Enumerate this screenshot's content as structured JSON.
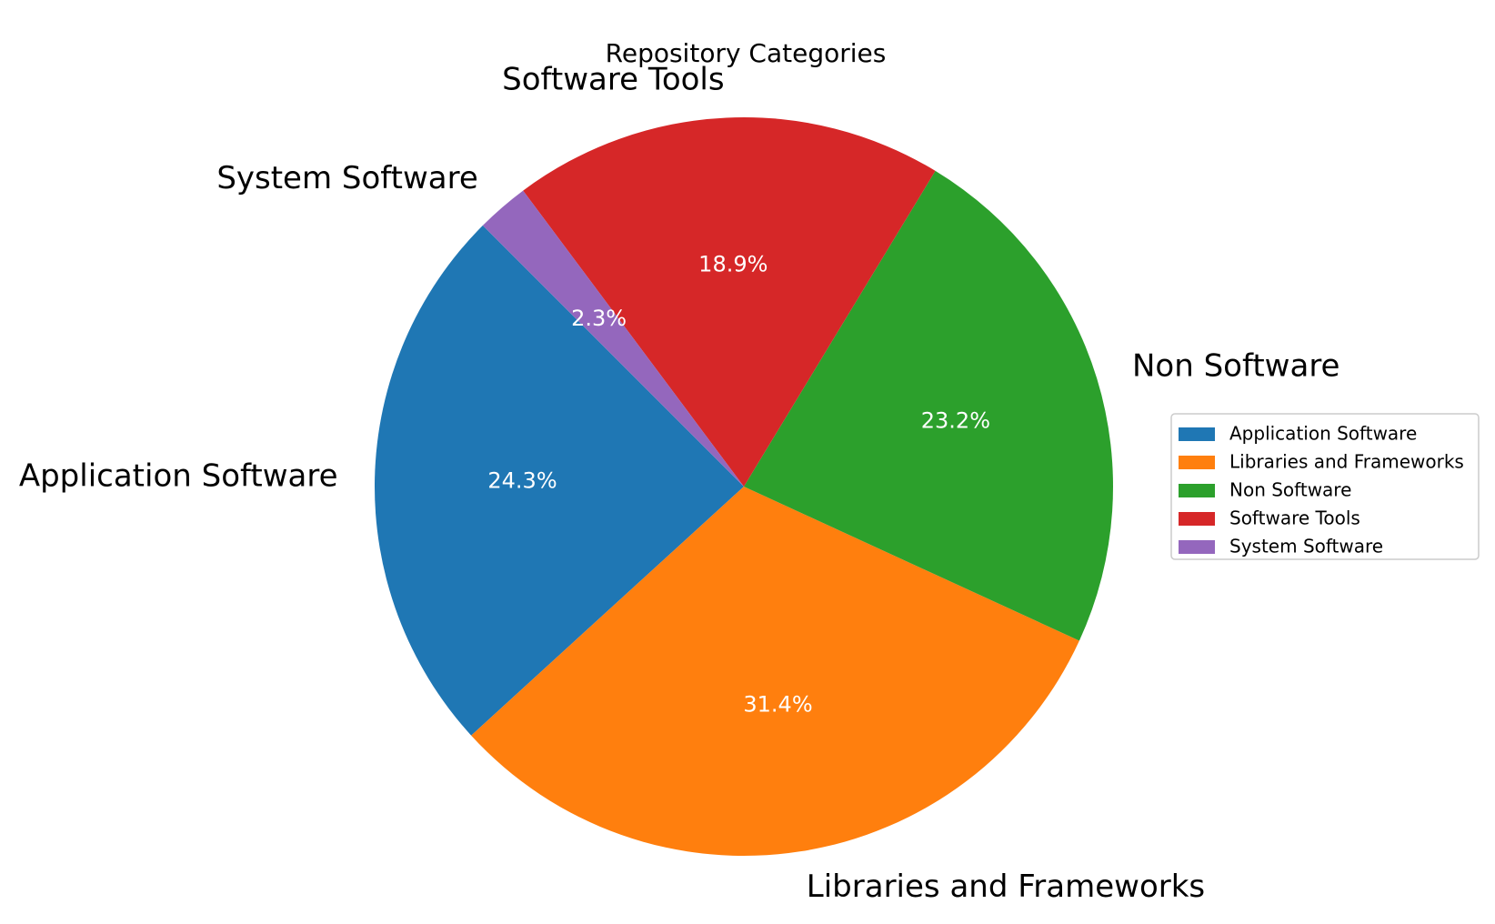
{
  "chart_data": {
    "type": "pie",
    "title": "Repository Categories",
    "categories": [
      "Application Software",
      "Libraries and Frameworks",
      "Non Software",
      "Software Tools",
      "System Software"
    ],
    "values": [
      24.3,
      31.4,
      23.2,
      18.9,
      2.3
    ],
    "percent_labels": [
      "24.3%",
      "31.4%",
      "23.2%",
      "18.9%",
      "2.3%"
    ],
    "colors": [
      "#1f77b4",
      "#ff7f0e",
      "#2ca02c",
      "#d62728",
      "#9467bd"
    ],
    "start_angle_deg": 135,
    "direction": "counterclockwise",
    "legend": {
      "placement": "right",
      "entries": [
        "Application Software",
        "Libraries and Frameworks",
        "Non Software",
        "Software Tools",
        "System Software"
      ]
    }
  }
}
